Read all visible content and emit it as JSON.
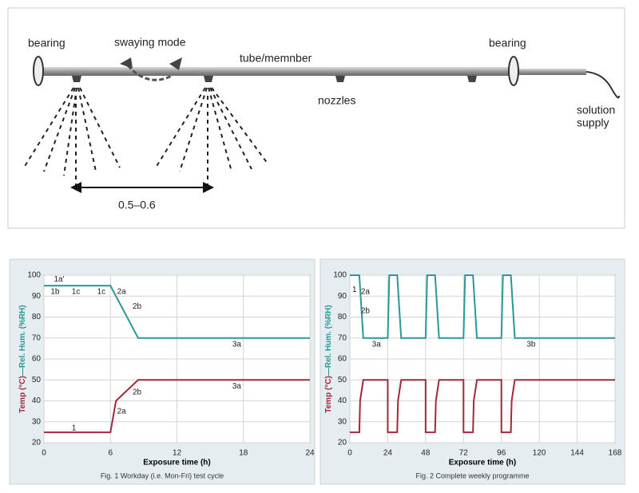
{
  "diagram": {
    "labels": {
      "bearing_left": "bearing",
      "swaying": "swaying mode",
      "tube": "tube/memnber",
      "bearing_right": "bearing",
      "nozzles": "nozzles",
      "supply": [
        "solution",
        "supply"
      ],
      "distance": "0.5–0.6"
    }
  },
  "chart_data": [
    {
      "type": "line",
      "caption": "Fig. 1 Workday (i.e. Mon-Fri) test cycle",
      "xlabel": "Exposure time (h)",
      "ylabel": [
        "Temp (°C)",
        "—Rel. Hum. (%RH)"
      ],
      "xlim": [
        0,
        24
      ],
      "xticks": [
        0,
        6,
        12,
        18,
        24
      ],
      "ylim": [
        20,
        100
      ],
      "yticks": [
        20,
        30,
        40,
        50,
        60,
        70,
        80,
        90,
        100
      ],
      "grid": true,
      "series": [
        {
          "name": "Rel. Hum.",
          "color": "#2a9896",
          "x": [
            0,
            6,
            8.5,
            24
          ],
          "values": [
            95,
            95,
            70,
            70
          ]
        },
        {
          "name": "Temp",
          "color": "#a3283a",
          "x": [
            0,
            6,
            6.5,
            8.5,
            24
          ],
          "values": [
            25,
            25,
            40,
            50,
            50
          ]
        }
      ],
      "annotations": [
        {
          "text": "1a'",
          "x": 0.9,
          "y": 98
        },
        {
          "text": "1b",
          "x": 0.6,
          "y": 92
        },
        {
          "text": "1c",
          "x": 2.5,
          "y": 92
        },
        {
          "text": "1c",
          "x": 4.8,
          "y": 92
        },
        {
          "text": "2a",
          "x": 6.6,
          "y": 92
        },
        {
          "text": "2b",
          "x": 8,
          "y": 85
        },
        {
          "text": "3a",
          "x": 17,
          "y": 67
        },
        {
          "text": "1",
          "x": 2.5,
          "y": 27
        },
        {
          "text": "2a",
          "x": 6.6,
          "y": 35
        },
        {
          "text": "2b",
          "x": 8,
          "y": 44
        },
        {
          "text": "3a",
          "x": 17,
          "y": 47
        }
      ]
    },
    {
      "type": "line",
      "caption": "Fig. 2 Complete weekly programme",
      "xlabel": "Exposure time (h)",
      "ylabel": [
        "Temp (°C)",
        "—Rel. Hum. (%RH)"
      ],
      "xlim": [
        0,
        168
      ],
      "xticks": [
        0,
        24,
        48,
        72,
        96,
        120,
        144,
        168
      ],
      "ylim": [
        20,
        100
      ],
      "yticks": [
        20,
        30,
        40,
        50,
        60,
        70,
        80,
        90,
        100
      ],
      "grid": true,
      "series": [
        {
          "name": "Rel. Hum.",
          "color": "#2a9896",
          "x": [
            0,
            6,
            8.5,
            24,
            25,
            30,
            32.5,
            48,
            49,
            54,
            56.5,
            72,
            73,
            78,
            80.5,
            96,
            97,
            102,
            104.5,
            168
          ],
          "values": [
            100,
            100,
            70,
            70,
            100,
            100,
            70,
            70,
            100,
            100,
            70,
            70,
            100,
            100,
            70,
            70,
            100,
            100,
            70,
            70
          ]
        },
        {
          "name": "Temp",
          "color": "#a3283a",
          "x": [
            0,
            6,
            6.5,
            8.5,
            24,
            24,
            30,
            30.5,
            32.5,
            48,
            48,
            54,
            54.5,
            56.5,
            72,
            72,
            78,
            78.5,
            80.5,
            96,
            96,
            102,
            102.5,
            104.5,
            168
          ],
          "values": [
            25,
            25,
            40,
            50,
            50,
            25,
            25,
            40,
            50,
            50,
            25,
            25,
            40,
            50,
            50,
            25,
            25,
            40,
            50,
            50,
            25,
            25,
            40,
            50,
            50
          ]
        }
      ],
      "annotations": [
        {
          "text": "1",
          "x": 1.5,
          "y": 93
        },
        {
          "text": "2a",
          "x": 7,
          "y": 92
        },
        {
          "text": "2b",
          "x": 7,
          "y": 83
        },
        {
          "text": "3a",
          "x": 14,
          "y": 67
        },
        {
          "text": "3b",
          "x": 112,
          "y": 67
        }
      ]
    }
  ]
}
